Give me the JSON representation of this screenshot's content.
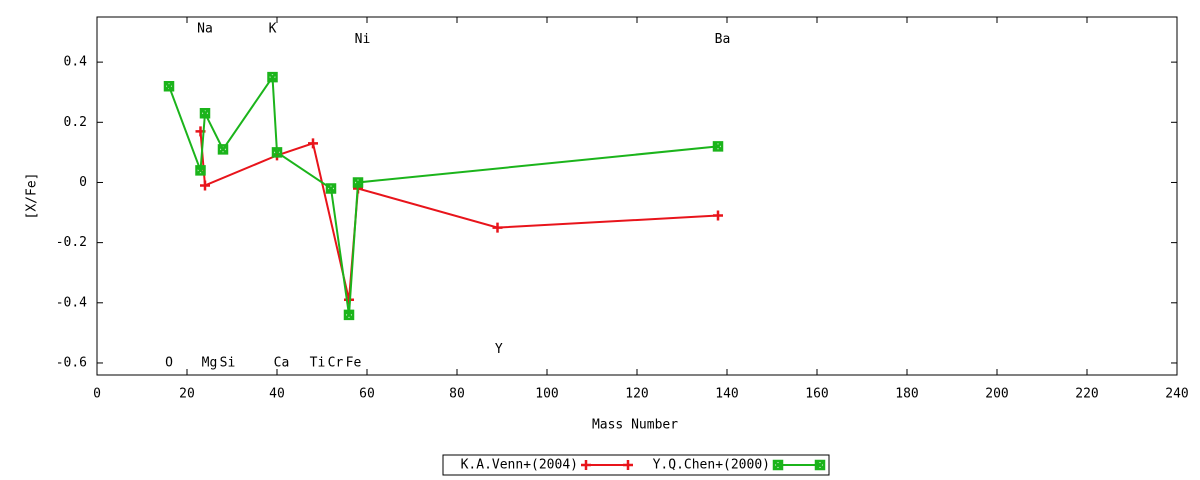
{
  "chart_data": {
    "type": "line",
    "xlabel": "Mass Number",
    "ylabel": "[X/Fe]",
    "xlim": [
      0,
      240
    ],
    "xticks": [
      0,
      20,
      40,
      60,
      80,
      100,
      120,
      140,
      160,
      180,
      200,
      220,
      240
    ],
    "ylim": [
      -0.64,
      0.55
    ],
    "yticks": [
      0.4,
      0.2,
      0,
      -0.2,
      -0.4,
      -0.6
    ],
    "grid": false,
    "legend": "bottom",
    "series": [
      {
        "name": "K.A.Venn+(2004)",
        "color": "#e8141b",
        "marker": "plus",
        "x": [
          23,
          24,
          40,
          48,
          56,
          58,
          89,
          138
        ],
        "values": [
          0.17,
          -0.01,
          0.09,
          0.13,
          -0.39,
          -0.02,
          -0.15,
          -0.11
        ]
      },
      {
        "name": "Y.Q.Chen+(2000)",
        "color": "#1bb41b",
        "marker": "cross-box",
        "x": [
          16,
          23,
          24,
          28,
          39,
          40,
          52,
          56,
          58,
          138
        ],
        "values": [
          0.32,
          0.04,
          0.23,
          0.11,
          0.35,
          0.1,
          -0.02,
          -0.44,
          0.0,
          0.12
        ]
      }
    ],
    "annotations": [
      {
        "text": "O",
        "x": 16,
        "y": -0.6
      },
      {
        "text": "Na",
        "x": 24,
        "y": 0.51
      },
      {
        "text": "Mg",
        "x": 25,
        "y": -0.6
      },
      {
        "text": "Si",
        "x": 29,
        "y": -0.6
      },
      {
        "text": "K",
        "x": 39,
        "y": 0.51
      },
      {
        "text": "Ca",
        "x": 41,
        "y": -0.6
      },
      {
        "text": "Ti",
        "x": 49,
        "y": -0.6
      },
      {
        "text": "Cr",
        "x": 53,
        "y": -0.6
      },
      {
        "text": "Fe",
        "x": 57,
        "y": -0.6
      },
      {
        "text": "Ni",
        "x": 59,
        "y": 0.475
      },
      {
        "text": "Y",
        "x": 89.3,
        "y": -0.555
      },
      {
        "text": "Ba",
        "x": 139,
        "y": 0.475
      }
    ]
  }
}
